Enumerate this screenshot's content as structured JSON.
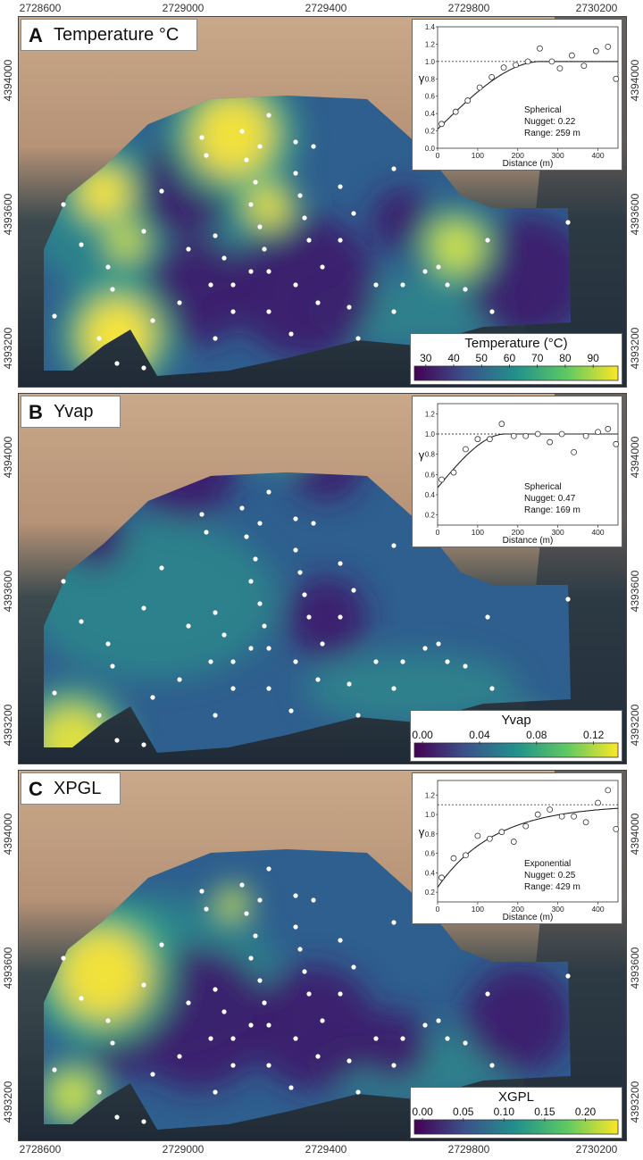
{
  "axes": {
    "x_labels": [
      "2728600",
      "2729000",
      "2729400",
      "2729800",
      "2730200"
    ],
    "y_labels": [
      "4394000",
      "4393600",
      "4393200"
    ]
  },
  "panels": [
    {
      "letter": "A",
      "title": "Temperature °C",
      "legend": {
        "title": "Temperature (°C)",
        "ticks": [
          "30",
          "40",
          "50",
          "60",
          "70",
          "80",
          "90"
        ],
        "tick_positions": [
          0.056,
          0.193,
          0.33,
          0.467,
          0.604,
          0.741,
          0.878
        ]
      },
      "variogram": {
        "model": "Spherical",
        "nugget_label": "Nugget: 0.22",
        "range_label": "Range: 259 m",
        "xlabel": "Distance (m)",
        "ylabel": "γ",
        "x_ticks": [
          "0",
          "100",
          "200",
          "300",
          "400"
        ],
        "y_ticks": [
          "0.0",
          "0.2",
          "0.4",
          "0.6",
          "0.8",
          "1.0",
          "1.2",
          "1.4"
        ],
        "xlim": [
          0,
          450
        ],
        "ylim": [
          0,
          1.4
        ],
        "sill": 1.0,
        "nugget": 0.22,
        "range": 259,
        "type": "spherical",
        "points": [
          [
            10,
            0.28
          ],
          [
            45,
            0.42
          ],
          [
            75,
            0.55
          ],
          [
            105,
            0.7
          ],
          [
            135,
            0.82
          ],
          [
            165,
            0.93
          ],
          [
            195,
            0.96
          ],
          [
            225,
            1.0
          ],
          [
            255,
            1.15
          ],
          [
            285,
            1.0
          ],
          [
            305,
            0.92
          ],
          [
            335,
            1.07
          ],
          [
            365,
            0.95
          ],
          [
            395,
            1.12
          ],
          [
            425,
            1.17
          ],
          [
            445,
            0.8
          ]
        ]
      }
    },
    {
      "letter": "B",
      "title": "Yvap",
      "legend": {
        "title": "Yvap",
        "ticks": [
          "0.00",
          "0.04",
          "0.08",
          "0.12"
        ],
        "tick_positions": [
          0.04,
          0.32,
          0.6,
          0.88
        ]
      },
      "variogram": {
        "model": "Spherical",
        "nugget_label": "Nugget: 0.47",
        "range_label": "Range: 169 m",
        "xlabel": "Distance (m)",
        "ylabel": "γ",
        "x_ticks": [
          "0",
          "100",
          "200",
          "300",
          "400"
        ],
        "y_ticks": [
          "0.2",
          "0.4",
          "0.6",
          "0.8",
          "1.0",
          "1.2"
        ],
        "xlim": [
          0,
          450
        ],
        "ylim": [
          0.1,
          1.3
        ],
        "sill": 1.0,
        "nugget": 0.47,
        "range": 169,
        "type": "spherical",
        "points": [
          [
            10,
            0.55
          ],
          [
            40,
            0.62
          ],
          [
            70,
            0.85
          ],
          [
            100,
            0.95
          ],
          [
            130,
            0.95
          ],
          [
            160,
            1.1
          ],
          [
            190,
            0.98
          ],
          [
            220,
            0.98
          ],
          [
            250,
            1.0
          ],
          [
            280,
            0.92
          ],
          [
            310,
            1.0
          ],
          [
            340,
            0.82
          ],
          [
            370,
            0.98
          ],
          [
            400,
            1.02
          ],
          [
            425,
            1.05
          ],
          [
            445,
            0.9
          ]
        ]
      }
    },
    {
      "letter": "C",
      "title": "XPGL",
      "legend": {
        "title": "XGPL",
        "ticks": [
          "0.00",
          "0.05",
          "0.10",
          "0.15",
          "0.20"
        ],
        "tick_positions": [
          0.04,
          0.24,
          0.44,
          0.64,
          0.84
        ]
      },
      "variogram": {
        "model": "Exponential",
        "nugget_label": "Nugget: 0.25",
        "range_label": "Range: 429 m",
        "xlabel": "Distance (m)",
        "ylabel": "γ",
        "x_ticks": [
          "0",
          "100",
          "200",
          "300",
          "400"
        ],
        "y_ticks": [
          "0.2",
          "0.4",
          "0.6",
          "0.8",
          "1.0",
          "1.2"
        ],
        "xlim": [
          0,
          450
        ],
        "ylim": [
          0.1,
          1.35
        ],
        "sill": 1.1,
        "nugget": 0.25,
        "range": 429,
        "type": "exponential",
        "points": [
          [
            10,
            0.35
          ],
          [
            40,
            0.55
          ],
          [
            70,
            0.58
          ],
          [
            100,
            0.78
          ],
          [
            130,
            0.75
          ],
          [
            160,
            0.82
          ],
          [
            190,
            0.72
          ],
          [
            220,
            0.88
          ],
          [
            250,
            1.0
          ],
          [
            280,
            1.05
          ],
          [
            310,
            0.98
          ],
          [
            340,
            0.98
          ],
          [
            370,
            0.92
          ],
          [
            400,
            1.12
          ],
          [
            425,
            1.25
          ],
          [
            445,
            0.85
          ]
        ]
      }
    }
  ]
}
